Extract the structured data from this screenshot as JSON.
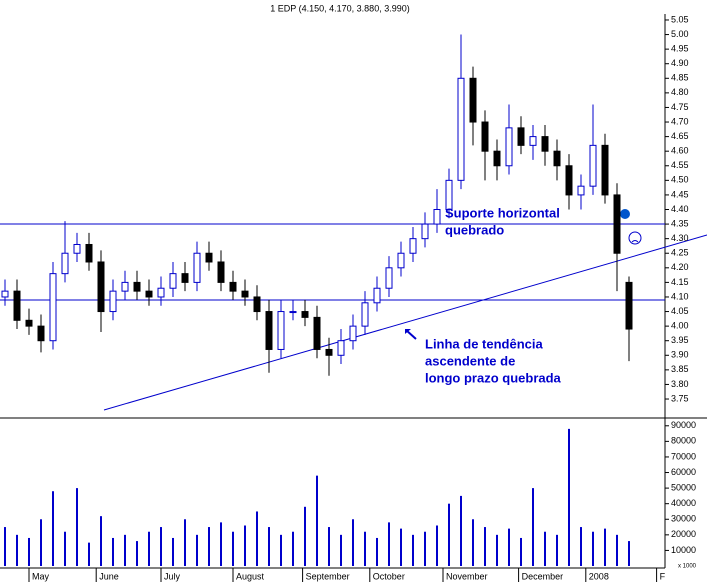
{
  "chart_data": {
    "type": "candlestick",
    "title": "1 EDP (4.150, 4.170, 3.880, 3.990)",
    "xlim": [
      0,
      55
    ],
    "xticks": [
      {
        "value": 2,
        "label": "May"
      },
      {
        "value": 7.6,
        "label": "June"
      },
      {
        "value": 13,
        "label": "July"
      },
      {
        "value": 19,
        "label": "August"
      },
      {
        "value": 24.8,
        "label": "September"
      },
      {
        "value": 30.4,
        "label": "October"
      },
      {
        "value": 36.5,
        "label": "November"
      },
      {
        "value": 42.8,
        "label": "December"
      },
      {
        "value": 48.4,
        "label": "2008"
      },
      {
        "value": 54.3,
        "label": "F"
      }
    ],
    "ylim": [
      3.7,
      5.1
    ],
    "yticks": [
      3.75,
      {
        "value": 3.8,
        "label": "3.80"
      },
      3.85,
      {
        "value": 3.9,
        "label": "3.90"
      },
      3.95,
      {
        "value": 4,
        "label": "4.00"
      },
      4.05,
      {
        "value": 4.1,
        "label": "4.10"
      },
      4.15,
      {
        "value": 4.2,
        "label": "4.20"
      },
      4.25,
      {
        "value": 4.3,
        "label": "4.30"
      },
      4.35,
      {
        "value": 4.4,
        "label": "4.40"
      },
      4.45,
      {
        "value": 4.5,
        "label": "4.50"
      },
      4.55,
      {
        "value": 4.6,
        "label": "4.60"
      },
      4.65,
      {
        "value": 4.7,
        "label": "4.70"
      },
      4.75,
      {
        "value": 4.8,
        "label": "4.80"
      },
      4.85,
      {
        "value": 4.9,
        "label": "4.90"
      },
      4.95,
      {
        "value": 5,
        "label": "5.00"
      },
      5.05
    ],
    "up_color": "#0000cc",
    "down_color": "#000000",
    "open": [
      4.1,
      4.12,
      4.02,
      4.0,
      3.95,
      4.18,
      4.25,
      4.28,
      4.22,
      4.05,
      4.12,
      4.15,
      4.12,
      4.1,
      4.13,
      4.18,
      4.15,
      4.25,
      4.22,
      4.15,
      4.12,
      4.1,
      4.05,
      3.92,
      4.05,
      4.05,
      4.03,
      3.92,
      3.9,
      3.95,
      4.0,
      4.08,
      4.13,
      4.2,
      4.25,
      4.3,
      4.35,
      4.4,
      4.5,
      4.85,
      4.7,
      4.6,
      4.55,
      4.68,
      4.62,
      4.65,
      4.6,
      4.55,
      4.45,
      4.48,
      4.62,
      4.45,
      4.15
    ],
    "high": [
      4.16,
      4.16,
      4.06,
      4.04,
      4.22,
      4.36,
      4.32,
      4.32,
      4.26,
      4.16,
      4.19,
      4.19,
      4.16,
      4.17,
      4.22,
      4.22,
      4.29,
      4.29,
      4.26,
      4.19,
      4.16,
      4.14,
      4.09,
      4.09,
      4.09,
      4.09,
      4.07,
      3.96,
      3.99,
      4.04,
      4.12,
      4.17,
      4.24,
      4.29,
      4.34,
      4.39,
      4.47,
      4.54,
      5.0,
      4.89,
      4.74,
      4.64,
      4.76,
      4.72,
      4.69,
      4.69,
      4.64,
      4.59,
      4.52,
      4.76,
      4.66,
      4.49,
      4.17
    ],
    "low": [
      4.07,
      3.99,
      3.97,
      3.91,
      3.92,
      4.15,
      4.22,
      4.19,
      3.98,
      4.02,
      4.09,
      4.09,
      4.07,
      4.07,
      4.1,
      4.12,
      4.12,
      4.19,
      4.12,
      4.09,
      4.07,
      4.02,
      3.84,
      3.89,
      4.02,
      4.0,
      3.89,
      3.83,
      3.87,
      3.92,
      3.97,
      4.05,
      4.1,
      4.17,
      4.22,
      4.27,
      4.32,
      4.37,
      4.47,
      4.62,
      4.5,
      4.5,
      4.52,
      4.59,
      4.57,
      4.55,
      4.5,
      4.4,
      4.4,
      4.45,
      4.42,
      4.12,
      3.88
    ],
    "close": [
      4.12,
      4.02,
      4.0,
      3.95,
      4.18,
      4.25,
      4.28,
      4.22,
      4.05,
      4.12,
      4.15,
      4.12,
      4.1,
      4.13,
      4.18,
      4.15,
      4.25,
      4.22,
      4.15,
      4.12,
      4.1,
      4.05,
      3.92,
      4.05,
      4.05,
      4.03,
      3.92,
      3.9,
      3.95,
      4.0,
      4.08,
      4.13,
      4.2,
      4.25,
      4.3,
      4.35,
      4.4,
      4.5,
      4.85,
      4.7,
      4.6,
      4.55,
      4.68,
      4.62,
      4.65,
      4.6,
      4.55,
      4.45,
      4.48,
      4.62,
      4.45,
      4.25,
      3.99
    ],
    "volume": {
      "color": "#0000cc",
      "unit_label": "x 1000",
      "ylim": [
        0,
        95000
      ],
      "yticks": [
        10000,
        20000,
        30000,
        40000,
        50000,
        60000,
        70000,
        80000,
        90000
      ],
      "values": [
        25000,
        20000,
        18000,
        30000,
        48000,
        22000,
        50000,
        15000,
        32000,
        18000,
        20000,
        16000,
        22000,
        25000,
        18000,
        30000,
        20000,
        25000,
        28000,
        22000,
        26000,
        35000,
        25000,
        20000,
        22000,
        38000,
        58000,
        25000,
        20000,
        30000,
        22000,
        18000,
        28000,
        24000,
        20000,
        22000,
        26000,
        40000,
        45000,
        30000,
        25000,
        20000,
        24000,
        18000,
        50000,
        22000,
        20000,
        88000,
        25000,
        22000,
        24000,
        20000,
        16000
      ]
    },
    "annotations": [
      {
        "lines": [
          "Suporte horizontal",
          "quebrado"
        ]
      },
      {
        "lines": [
          "Linha de tendência",
          "ascendente de",
          "longo prazo quebrada"
        ]
      }
    ]
  }
}
